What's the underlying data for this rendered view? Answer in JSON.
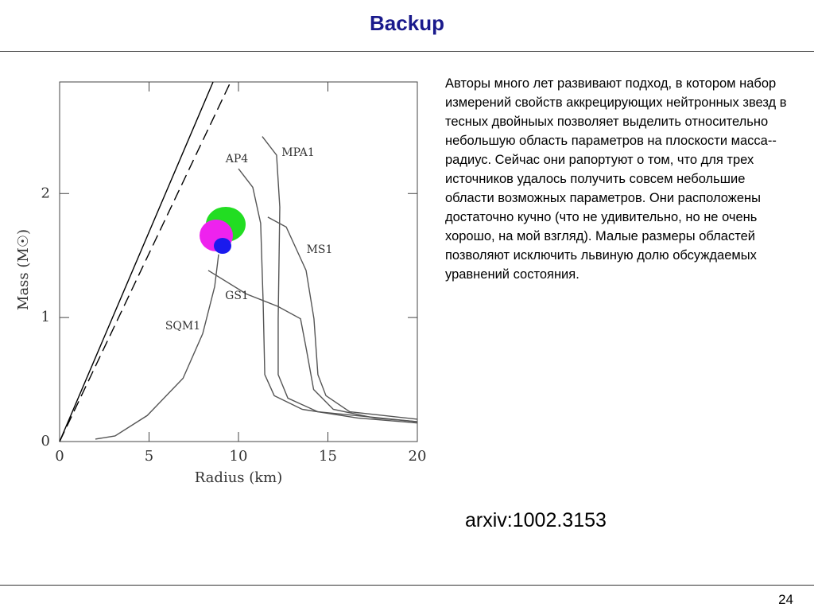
{
  "slide": {
    "title": "Backup",
    "text": "Авторы много лет развивают подход, в котором набор измерений свойств аккрецирующих нейтронных звезд в тесных двойныых позволяет выделить относительно небольшую область параметров на плоскости масса--радиус. Сейчас они рапортуют о том, что для трех источников удалось получить совсем небольшие области возможных параметров. Они расположены достаточно кучно (что не удивительно, но не очень хорошо, на мой взгляд). Малые размеры областей позволяют исключить львиную долю обсуждаемых уравнений состояния.",
    "reference": "arxiv:1002.3153",
    "page_number": "24"
  },
  "chart_data": {
    "type": "line",
    "x_label": "Radius (km)",
    "y_label": "Mass (M☉)",
    "xlim": [
      0,
      20
    ],
    "xticks": [
      0,
      5,
      10,
      15,
      20
    ],
    "ylim": [
      0,
      2.9
    ],
    "yticks": [
      0,
      1,
      2
    ],
    "series": [
      {
        "color": "#000000",
        "dashed": false,
        "x": [
          0,
          8.58
        ],
        "values": [
          0,
          2.9
        ]
      },
      {
        "color": "#000000",
        "dashed": true,
        "x": [
          0,
          9.56
        ],
        "values": [
          0,
          2.9
        ]
      },
      {
        "name": "SQM1",
        "color": "#555555",
        "x": [
          2.0,
          3.1,
          4.9,
          6.9,
          8.0,
          8.67,
          8.89
        ],
        "values": [
          0.02,
          0.045,
          0.21,
          0.51,
          0.87,
          1.25,
          1.51
        ]
      },
      {
        "name": "GS1",
        "color": "#555555",
        "x": [
          8.31,
          10.44,
          12.2,
          13.47,
          13.8,
          14.2,
          15.3,
          17.6,
          20
        ],
        "values": [
          1.38,
          1.19,
          1.09,
          0.99,
          0.74,
          0.42,
          0.26,
          0.19,
          0.16
        ]
      },
      {
        "name": "AP4",
        "color": "#555555",
        "x": [
          10,
          10.8,
          11.24,
          11.38,
          11.47,
          12,
          13.56,
          16.67,
          20
        ],
        "values": [
          2.2,
          2.05,
          1.76,
          1.12,
          0.54,
          0.37,
          0.26,
          0.19,
          0.15
        ]
      },
      {
        "name": "MPA1",
        "color": "#555555",
        "x": [
          11.33,
          12.13,
          12.31,
          12.22,
          12.22,
          12.76,
          14.44,
          20
        ],
        "values": [
          2.46,
          2.31,
          1.89,
          0.99,
          0.54,
          0.35,
          0.24,
          0.16
        ]
      },
      {
        "name": "MS1",
        "color": "#555555",
        "x": [
          11.64,
          12.67,
          13.78,
          14.22,
          14.44,
          14.89,
          16.22,
          20
        ],
        "values": [
          1.81,
          1.73,
          1.38,
          0.99,
          0.54,
          0.37,
          0.24,
          0.18
        ]
      }
    ]
  }
}
